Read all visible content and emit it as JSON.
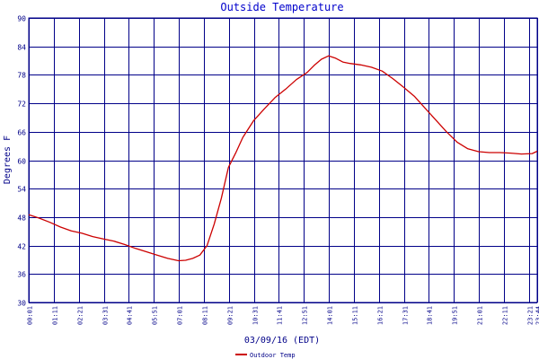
{
  "colors": {
    "grid": "#000088",
    "series": "#cc0000",
    "text": "#000088",
    "title": "#0000cc",
    "background": "#ffffff"
  },
  "chart_data": {
    "type": "line",
    "title": "Outside Temperature",
    "xlabel": "03/09/16 (EDT)",
    "ylabel": "Degrees F",
    "ylim": [
      30,
      90
    ],
    "yticks": [
      "30",
      "36",
      "42",
      "48",
      "54",
      "60",
      "66",
      "72",
      "78",
      "84",
      "90"
    ],
    "xticks": [
      "00:01",
      "01:11",
      "02:21",
      "03:31",
      "04:41",
      "05:51",
      "07:01",
      "08:11",
      "09:21",
      "10:31",
      "11:41",
      "12:51",
      "14:01",
      "15:11",
      "16:21",
      "17:31",
      "18:41",
      "19:51",
      "21:01",
      "22:11",
      "23:21",
      "23:44"
    ],
    "grid": true,
    "legend_position": "bottom",
    "series": [
      {
        "name": "Outdoor Temp",
        "x": [
          "00:01",
          "00:30",
          "01:00",
          "01:30",
          "02:00",
          "02:30",
          "03:00",
          "03:30",
          "04:00",
          "04:30",
          "05:00",
          "05:30",
          "06:00",
          "06:30",
          "07:00",
          "07:20",
          "07:40",
          "08:00",
          "08:20",
          "08:40",
          "09:00",
          "09:20",
          "09:40",
          "10:00",
          "10:30",
          "11:00",
          "11:30",
          "12:00",
          "12:30",
          "13:00",
          "13:20",
          "13:40",
          "14:00",
          "14:20",
          "14:40",
          "15:00",
          "15:30",
          "16:00",
          "16:30",
          "17:00",
          "17:30",
          "18:00",
          "18:30",
          "19:00",
          "19:30",
          "20:00",
          "20:30",
          "21:00",
          "21:30",
          "22:00",
          "22:30",
          "23:00",
          "23:30",
          "23:44"
        ],
        "y": [
          48.5,
          47.8,
          46.9,
          45.9,
          45.1,
          44.6,
          43.9,
          43.4,
          42.9,
          42.2,
          41.4,
          40.7,
          40.0,
          39.3,
          38.8,
          38.9,
          39.3,
          40.0,
          42.0,
          46.5,
          52.0,
          58.5,
          61.5,
          64.8,
          68.3,
          70.8,
          73.2,
          75.0,
          77.0,
          78.5,
          80.0,
          81.3,
          82.0,
          81.5,
          80.7,
          80.4,
          80.1,
          79.6,
          78.8,
          77.2,
          75.4,
          73.5,
          71.0,
          68.5,
          66.0,
          63.8,
          62.4,
          61.8,
          61.6,
          61.6,
          61.5,
          61.3,
          61.4,
          61.9
        ]
      }
    ]
  }
}
